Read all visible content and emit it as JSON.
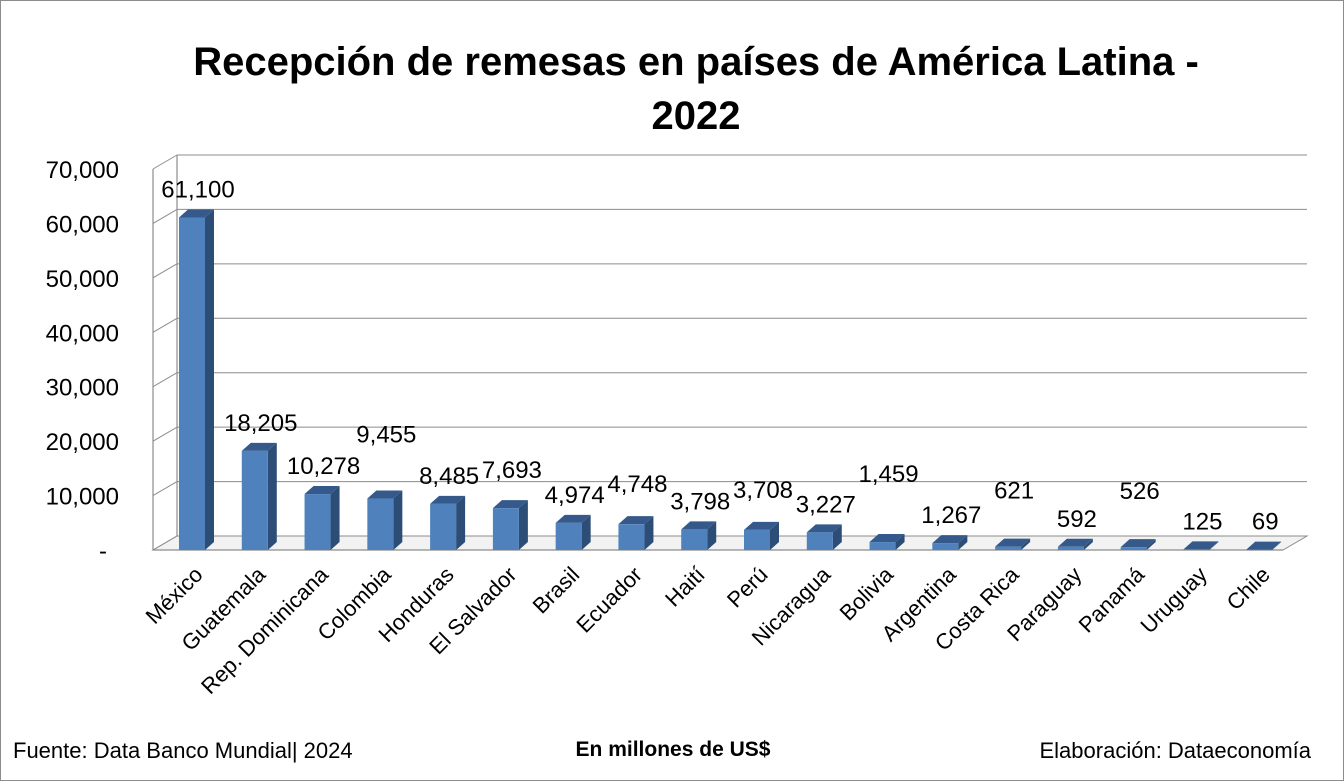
{
  "chart_data": {
    "type": "bar",
    "title": "Recepción de remesas en países de América Latina -\n2022",
    "categories": [
      "México",
      "Guatemala",
      "Rep. Dominicana",
      "Colombia",
      "Honduras",
      "El Salvador",
      "Brasil",
      "Ecuador",
      "Haití",
      "Perú",
      "Nicaragua",
      "Bolivia",
      "Argentina",
      "Costa Rica",
      "Paraguay",
      "Panamá",
      "Uruguay",
      "Chile"
    ],
    "values": [
      61100,
      18205,
      10278,
      9455,
      8485,
      7693,
      4974,
      4748,
      3798,
      3708,
      3227,
      1459,
      1267,
      621,
      592,
      526,
      125,
      69
    ],
    "data_labels": [
      "61,100",
      "18,205",
      "10,278",
      "9,455",
      "8,485",
      "7,693",
      "4,974",
      "4,748",
      "3,798",
      "3,708",
      "3,227",
      "1,459",
      "1,267",
      "621",
      "592",
      "526",
      "125",
      "69"
    ],
    "ylim": [
      0,
      70000
    ],
    "yticks": [
      0,
      10000,
      20000,
      30000,
      40000,
      50000,
      60000,
      70000
    ],
    "ytick_labels": [
      "-",
      "10,000",
      "20,000",
      "30,000",
      "40,000",
      "50,000",
      "60,000",
      "70,000"
    ],
    "grid": true,
    "legend": "none",
    "style": "3d-column",
    "bar_color": "#4f81bd"
  },
  "footer": {
    "source": "Fuente: Data Banco Mundial| 2024",
    "units": "En millones de US$",
    "credit": "Elaboración: Dataeconomía"
  }
}
